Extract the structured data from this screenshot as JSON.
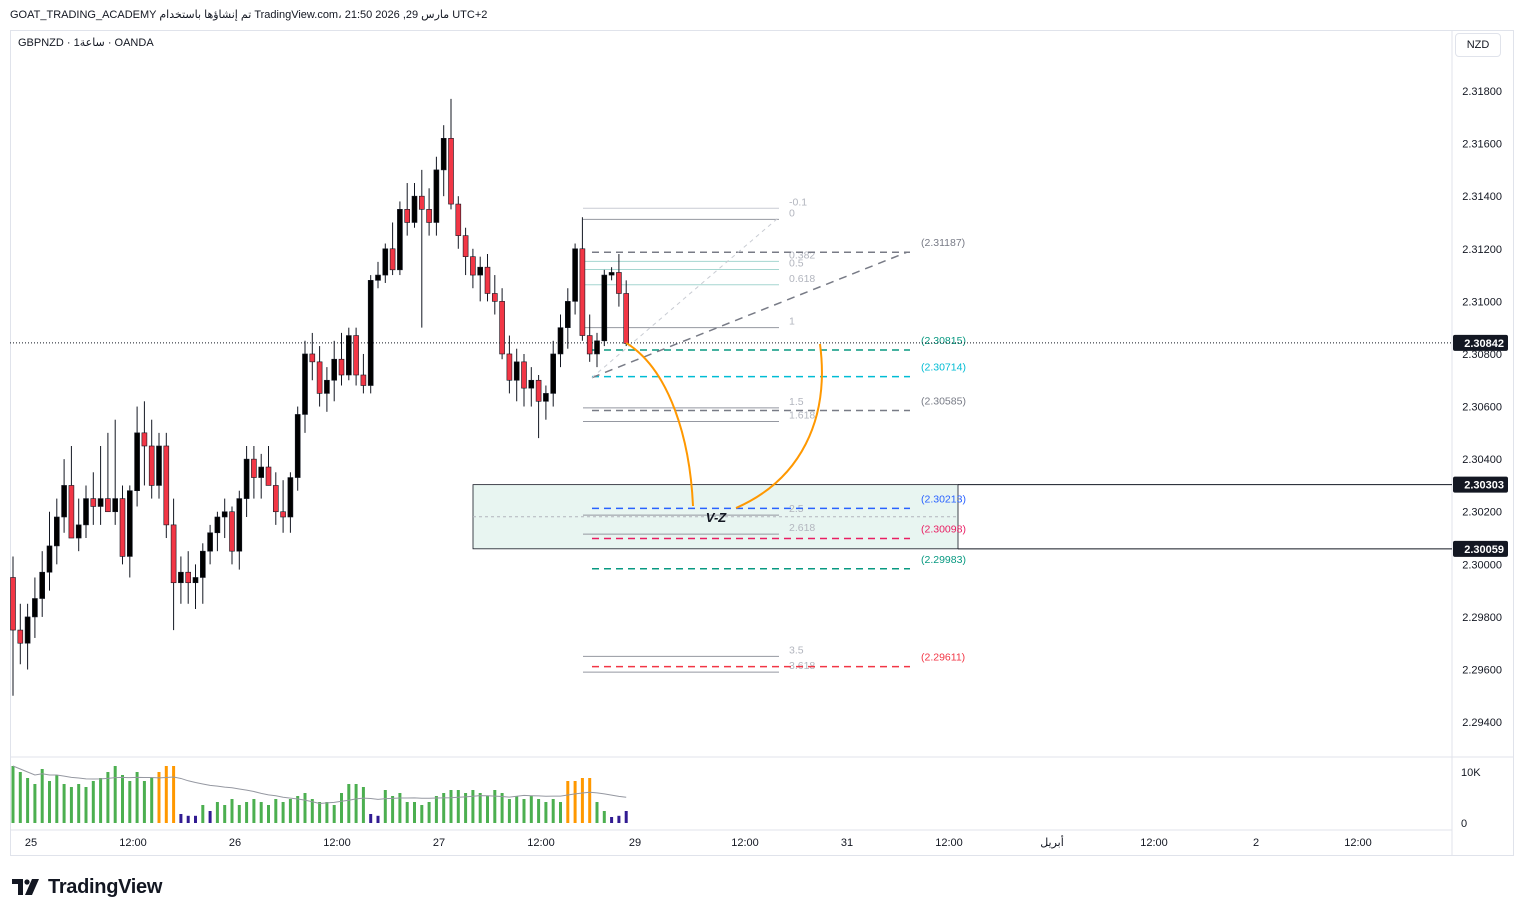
{
  "header": {
    "attribution": "GOAT_TRADING_ACADEMY تم إنشاؤها باستخدام TradingView.com، 21:50 2026 ,29 مارس UTC+2",
    "symbol_line": "GBPNZD · 1ساعة · OANDA",
    "currency": "NZD"
  },
  "footer": {
    "brand": "TradingView"
  },
  "chart_data": {
    "type": "candlestick",
    "symbol": "GBPNZD",
    "exchange": "OANDA",
    "interval": "1ساعة",
    "y_axis": {
      "range": [
        2.2935,
        2.3215
      ],
      "ticks": [
        "2.31800",
        "2.31600",
        "2.31400",
        "2.31200",
        "2.31000",
        "2.30800",
        "2.30600",
        "2.30400",
        "2.30200",
        "2.30000",
        "2.29800",
        "2.29600",
        "2.29400"
      ]
    },
    "x_axis": {
      "ticks": [
        "25",
        "12:00",
        "26",
        "12:00",
        "27",
        "12:00",
        "29",
        "12:00",
        "31",
        "12:00",
        "أبريل",
        "12:00",
        "2",
        "12:00"
      ]
    },
    "price_badges": [
      {
        "value": "2.30842",
        "role": "last-price"
      },
      {
        "value": "2.30303",
        "role": "zone-top"
      },
      {
        "value": "2.30059",
        "role": "zone-bottom"
      }
    ],
    "candles": [
      [
        2.2995,
        2.3003,
        2.295,
        2.2975
      ],
      [
        2.2975,
        2.2985,
        2.2962,
        2.297
      ],
      [
        2.297,
        2.2985,
        2.296,
        2.298
      ],
      [
        2.298,
        2.2995,
        2.2972,
        2.2987
      ],
      [
        2.2987,
        2.3005,
        2.298,
        2.2997
      ],
      [
        2.2997,
        2.302,
        2.299,
        2.3007
      ],
      [
        2.3007,
        2.3025,
        2.3,
        2.3018
      ],
      [
        2.3018,
        2.304,
        2.3012,
        2.303
      ],
      [
        2.303,
        2.3045,
        2.301,
        2.301
      ],
      [
        2.301,
        2.3025,
        2.3005,
        2.3015
      ],
      [
        2.3015,
        2.303,
        2.301,
        2.3025
      ],
      [
        2.3025,
        2.3035,
        2.3015,
        2.3022
      ],
      [
        2.3022,
        2.3045,
        2.3015,
        2.3025
      ],
      [
        2.3025,
        2.305,
        2.302,
        2.302
      ],
      [
        2.302,
        2.3055,
        2.3015,
        2.3025
      ],
      [
        2.3025,
        2.303,
        2.3,
        2.3003
      ],
      [
        2.3003,
        2.303,
        2.2995,
        2.3028
      ],
      [
        2.3028,
        2.306,
        2.3022,
        2.305
      ],
      [
        2.305,
        2.3062,
        2.303,
        2.3045
      ],
      [
        2.3045,
        2.3055,
        2.3025,
        2.303
      ],
      [
        2.303,
        2.305,
        2.3025,
        2.3045
      ],
      [
        2.3045,
        2.305,
        2.301,
        2.3015
      ],
      [
        2.3015,
        2.3025,
        2.2975,
        2.2993
      ],
      [
        2.2993,
        2.3003,
        2.2985,
        2.2997
      ],
      [
        2.2997,
        2.3005,
        2.2985,
        2.2993
      ],
      [
        2.2993,
        2.3,
        2.2983,
        2.2995
      ],
      [
        2.2995,
        2.3008,
        2.2985,
        2.3005
      ],
      [
        2.3005,
        2.3015,
        2.3,
        2.3012
      ],
      [
        2.3012,
        2.302,
        2.3005,
        2.3018
      ],
      [
        2.3018,
        2.3025,
        2.301,
        2.302
      ],
      [
        2.302,
        2.3022,
        2.3,
        2.3005
      ],
      [
        2.3005,
        2.3028,
        2.2998,
        2.3025
      ],
      [
        2.3025,
        2.3045,
        2.3018,
        2.304
      ],
      [
        2.304,
        2.3045,
        2.3025,
        2.3033
      ],
      [
        2.3033,
        2.3042,
        2.3025,
        2.3037
      ],
      [
        2.3037,
        2.3045,
        2.303,
        2.303
      ],
      [
        2.303,
        2.3035,
        2.3015,
        2.302
      ],
      [
        2.302,
        2.3032,
        2.3012,
        2.3018
      ],
      [
        2.3018,
        2.3035,
        2.3012,
        2.3033
      ],
      [
        2.3033,
        2.306,
        2.3028,
        2.3057
      ],
      [
        2.3057,
        2.3085,
        2.305,
        2.308
      ],
      [
        2.308,
        2.3088,
        2.307,
        2.3077
      ],
      [
        2.3077,
        2.3083,
        2.306,
        2.3065
      ],
      [
        2.3065,
        2.3075,
        2.3058,
        2.307
      ],
      [
        2.307,
        2.3085,
        2.3062,
        2.3078
      ],
      [
        2.3078,
        2.3088,
        2.3068,
        2.3072
      ],
      [
        2.3072,
        2.309,
        2.307,
        2.3087
      ],
      [
        2.3087,
        2.309,
        2.3068,
        2.3072
      ],
      [
        2.3072,
        2.308,
        2.3065,
        2.3068
      ],
      [
        2.3068,
        2.311,
        2.3065,
        2.3108
      ],
      [
        2.3108,
        2.3115,
        2.3105,
        2.311
      ],
      [
        2.311,
        2.3122,
        2.3107,
        2.312
      ],
      [
        2.312,
        2.313,
        2.311,
        2.3112
      ],
      [
        2.3112,
        2.3138,
        2.311,
        2.3135
      ],
      [
        2.3135,
        2.3145,
        2.3125,
        2.313
      ],
      [
        2.313,
        2.3145,
        2.3128,
        2.314
      ],
      [
        2.314,
        2.315,
        2.309,
        2.3135
      ],
      [
        2.3135,
        2.3143,
        2.3125,
        2.313
      ],
      [
        2.313,
        2.3155,
        2.3125,
        2.315
      ],
      [
        2.315,
        2.3167,
        2.314,
        2.3162
      ],
      [
        2.3162,
        2.3177,
        2.3135,
        2.3137
      ],
      [
        2.3137,
        2.314,
        2.312,
        2.3125
      ],
      [
        2.3125,
        2.3128,
        2.311,
        2.3117
      ],
      [
        2.3117,
        2.312,
        2.3105,
        2.311
      ],
      [
        2.311,
        2.3117,
        2.31,
        2.3113
      ],
      [
        2.3113,
        2.3118,
        2.31,
        2.3103
      ],
      [
        2.3103,
        2.311,
        2.3095,
        2.31
      ],
      [
        2.31,
        2.3105,
        2.3078,
        2.308
      ],
      [
        2.308,
        2.3087,
        2.3065,
        2.307
      ],
      [
        2.307,
        2.3082,
        2.3062,
        2.3077
      ],
      [
        2.3077,
        2.308,
        2.306,
        2.3067
      ],
      [
        2.3067,
        2.3075,
        2.306,
        2.307
      ],
      [
        2.307,
        2.3072,
        2.3048,
        2.3062
      ],
      [
        2.3062,
        2.3068,
        2.3055,
        2.3065
      ],
      [
        2.3065,
        2.3085,
        2.306,
        2.308
      ],
      [
        2.308,
        2.3095,
        2.3075,
        2.309
      ],
      [
        2.309,
        2.3105,
        2.3082,
        2.31
      ],
      [
        2.31,
        2.3122,
        2.3095,
        2.312
      ],
      [
        2.312,
        2.3132,
        2.3085,
        2.3087
      ],
      [
        2.3087,
        2.3095,
        2.3077,
        2.308
      ],
      [
        2.308,
        2.3088,
        2.3075,
        2.3085
      ],
      [
        2.3085,
        2.3112,
        2.3083,
        2.311
      ],
      [
        2.311,
        2.3113,
        2.3108,
        2.3111
      ],
      [
        2.3111,
        2.3118,
        2.3098,
        2.3103
      ],
      [
        2.3103,
        2.3108,
        2.3083,
        2.3084
      ]
    ],
    "volume": {
      "axis_ticks": [
        "10K",
        "0"
      ],
      "bars": [
        [
          0.95,
          "up"
        ],
        [
          0.85,
          "up"
        ],
        [
          0.75,
          "up"
        ],
        [
          0.65,
          "up"
        ],
        [
          0.9,
          "up"
        ],
        [
          0.7,
          "up"
        ],
        [
          0.8,
          "up"
        ],
        [
          0.65,
          "up"
        ],
        [
          0.6,
          "up"
        ],
        [
          0.65,
          "up"
        ],
        [
          0.6,
          "up"
        ],
        [
          0.7,
          "up"
        ],
        [
          0.75,
          "up"
        ],
        [
          0.85,
          "up"
        ],
        [
          0.95,
          "up"
        ],
        [
          0.8,
          "up"
        ],
        [
          0.7,
          "up"
        ],
        [
          0.85,
          "up"
        ],
        [
          0.7,
          "up"
        ],
        [
          0.75,
          "up"
        ],
        [
          0.85,
          "hi"
        ],
        [
          0.95,
          "hi"
        ],
        [
          0.95,
          "hi"
        ],
        [
          0.15,
          "dn"
        ],
        [
          0.12,
          "dn"
        ],
        [
          0.12,
          "dn"
        ],
        [
          0.3,
          "up"
        ],
        [
          0.2,
          "dn"
        ],
        [
          0.35,
          "up"
        ],
        [
          0.3,
          "up"
        ],
        [
          0.4,
          "up"
        ],
        [
          0.3,
          "up"
        ],
        [
          0.35,
          "up"
        ],
        [
          0.4,
          "up"
        ],
        [
          0.35,
          "up"
        ],
        [
          0.3,
          "up"
        ],
        [
          0.4,
          "up"
        ],
        [
          0.35,
          "up"
        ],
        [
          0.4,
          "up"
        ],
        [
          0.45,
          "up"
        ],
        [
          0.5,
          "up"
        ],
        [
          0.4,
          "up"
        ],
        [
          0.35,
          "up"
        ],
        [
          0.35,
          "up"
        ],
        [
          0.3,
          "up"
        ],
        [
          0.5,
          "up"
        ],
        [
          0.65,
          "up"
        ],
        [
          0.65,
          "up"
        ],
        [
          0.6,
          "up"
        ],
        [
          0.15,
          "dn"
        ],
        [
          0.12,
          "dn"
        ],
        [
          0.55,
          "up"
        ],
        [
          0.45,
          "up"
        ],
        [
          0.5,
          "up"
        ],
        [
          0.35,
          "up"
        ],
        [
          0.35,
          "up"
        ],
        [
          0.3,
          "up"
        ],
        [
          0.35,
          "up"
        ],
        [
          0.45,
          "up"
        ],
        [
          0.5,
          "up"
        ],
        [
          0.55,
          "up"
        ],
        [
          0.55,
          "up"
        ],
        [
          0.5,
          "up"
        ],
        [
          0.55,
          "up"
        ],
        [
          0.5,
          "up"
        ],
        [
          0.45,
          "up"
        ],
        [
          0.55,
          "up"
        ],
        [
          0.5,
          "up"
        ],
        [
          0.4,
          "up"
        ],
        [
          0.45,
          "up"
        ],
        [
          0.4,
          "up"
        ],
        [
          0.45,
          "up"
        ],
        [
          0.4,
          "up"
        ],
        [
          0.35,
          "up"
        ],
        [
          0.4,
          "up"
        ],
        [
          0.35,
          "up"
        ],
        [
          0.7,
          "hi"
        ],
        [
          0.7,
          "hi"
        ],
        [
          0.75,
          "hi"
        ],
        [
          0.75,
          "hi"
        ],
        [
          0.35,
          "up"
        ],
        [
          0.2,
          "up"
        ],
        [
          0.1,
          "dn"
        ],
        [
          0.12,
          "dn"
        ],
        [
          0.2,
          "dn"
        ]
      ]
    },
    "fib_levels": [
      {
        "label": "-0.1",
        "price": 2.31354
      },
      {
        "label": "0",
        "price": 2.31312
      },
      {
        "label": "0.382",
        "price": 2.31152
      },
      {
        "label": "0.5",
        "price": 2.31121
      },
      {
        "label": "0.618",
        "price": 2.31063
      },
      {
        "label": "1",
        "price": 2.309
      },
      {
        "label": "1.5",
        "price": 2.30595
      },
      {
        "label": "1.618",
        "price": 2.30543
      },
      {
        "label": "2.5",
        "price": 2.30187
      },
      {
        "label": "2.618",
        "price": 2.30115
      },
      {
        "label": "3.5",
        "price": 2.2965
      },
      {
        "label": "3.618",
        "price": 2.2959
      }
    ],
    "price_levels": [
      {
        "label": "(2.31187)",
        "price": 2.31187,
        "color": "#787b86"
      },
      {
        "label": "(2.30815)",
        "price": 2.30815,
        "color": "#089981"
      },
      {
        "label": "(2.30714)",
        "price": 2.30714,
        "color": "#00bcd4"
      },
      {
        "label": "(2.30585)",
        "price": 2.30585,
        "color": "#787b86"
      },
      {
        "label": "(2.30213)",
        "price": 2.30213,
        "color": "#2962ff"
      },
      {
        "label": "(2.30098)",
        "price": 2.30098,
        "color": "#e91e63"
      },
      {
        "label": "(2.29983)",
        "price": 2.29983,
        "color": "#089981"
      },
      {
        "label": "(2.29611)",
        "price": 2.29611,
        "color": "#f23645"
      }
    ],
    "zone": {
      "top": 2.30303,
      "bottom": 2.30059,
      "label": "V-Z"
    },
    "colors": {
      "up": "#000000",
      "down": "#f23645",
      "vol_up": "#4caf50",
      "vol_down": "#311b92",
      "vol_high": "#ff9800",
      "zone_fill": "#e8f5f1",
      "curve": "#ff9800"
    }
  }
}
